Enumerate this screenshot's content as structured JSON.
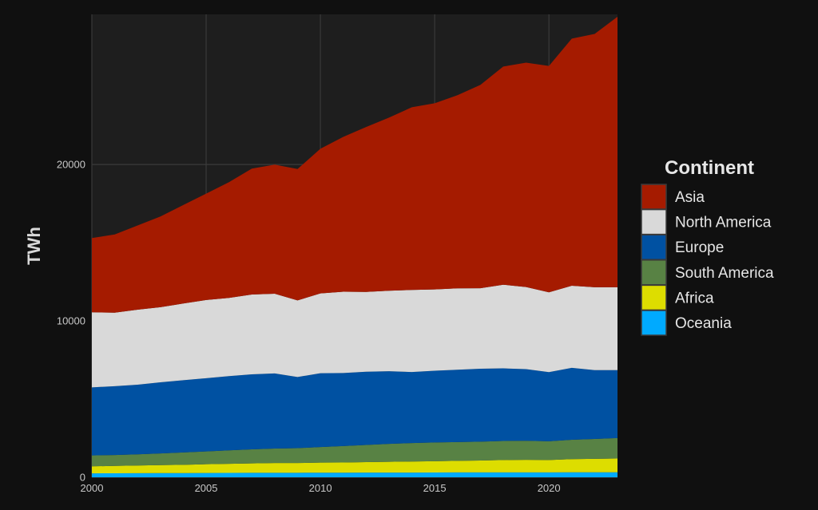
{
  "chart_data": {
    "type": "area",
    "stacked": true,
    "ylabel": "TWh",
    "xlabel": "",
    "xlim": [
      2000,
      2023
    ],
    "ylim": [
      0,
      29600
    ],
    "x_ticks": [
      2000,
      2005,
      2010,
      2015,
      2020
    ],
    "y_ticks": [
      0,
      10000,
      20000
    ],
    "grid": true,
    "legend": {
      "title": "Continent",
      "position": "right"
    },
    "x": [
      2000,
      2001,
      2002,
      2003,
      2004,
      2005,
      2006,
      2007,
      2008,
      2009,
      2010,
      2011,
      2012,
      2013,
      2014,
      2015,
      2016,
      2017,
      2018,
      2019,
      2020,
      2021,
      2022,
      2023
    ],
    "series": [
      {
        "name": "Oceania",
        "color": "#00aaff",
        "values": [
          250,
          255,
          260,
          265,
          270,
          275,
          280,
          285,
          290,
          290,
          295,
          295,
          300,
          300,
          300,
          305,
          310,
          310,
          315,
          315,
          315,
          320,
          320,
          320
        ]
      },
      {
        "name": "Africa",
        "color": "#dddd00",
        "values": [
          450,
          470,
          490,
          510,
          530,
          560,
          580,
          600,
          620,
          620,
          640,
          650,
          670,
          690,
          710,
          720,
          740,
          760,
          790,
          800,
          790,
          840,
          860,
          880
        ]
      },
      {
        "name": "South America",
        "color": "#588244",
        "values": [
          700,
          700,
          720,
          750,
          790,
          820,
          860,
          900,
          930,
          950,
          1000,
          1050,
          1100,
          1150,
          1180,
          1200,
          1200,
          1210,
          1220,
          1220,
          1200,
          1240,
          1270,
          1310
        ]
      },
      {
        "name": "Europe",
        "color": "#0051a2",
        "values": [
          4350,
          4400,
          4450,
          4550,
          4620,
          4680,
          4750,
          4800,
          4800,
          4550,
          4720,
          4670,
          4680,
          4640,
          4540,
          4590,
          4630,
          4660,
          4640,
          4580,
          4420,
          4600,
          4400,
          4340
        ]
      },
      {
        "name": "North America",
        "color": "#d9d9d9",
        "values": [
          4800,
          4700,
          4800,
          4800,
          4900,
          5000,
          5000,
          5100,
          5100,
          4900,
          5100,
          5200,
          5100,
          5150,
          5250,
          5200,
          5200,
          5150,
          5350,
          5250,
          5100,
          5250,
          5300,
          5300
        ]
      },
      {
        "name": "Asia",
        "color": "#a51b00",
        "values": [
          4750,
          5000,
          5380,
          5800,
          6300,
          6800,
          7400,
          8050,
          8250,
          8400,
          9250,
          9900,
          10550,
          11070,
          11680,
          11900,
          12350,
          13000,
          13950,
          14350,
          14475,
          15800,
          16200,
          17300
        ]
      }
    ]
  }
}
